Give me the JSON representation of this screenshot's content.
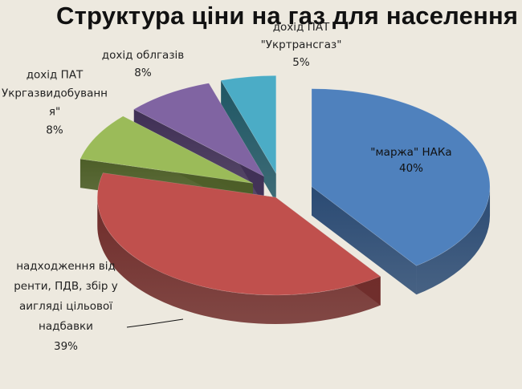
{
  "chart_data": {
    "type": "pie",
    "title": "Структура ціни на газ для населення",
    "slices": [
      {
        "label_lines": [
          "\"маржа\" НАКа"
        ],
        "value": 40,
        "value_text": "40%",
        "color": "#4f81bd",
        "dark": "#2a4a73"
      },
      {
        "label_lines": [
          "надходження від",
          "ренти, ПДВ, збір у",
          "аигляді цільової",
          "надбавки"
        ],
        "value": 39,
        "value_text": "39%",
        "color": "#c0504d",
        "dark": "#6e2b29"
      },
      {
        "label_lines": [
          "дохід ПАТ",
          "Укргазвидобуванн",
          "я\""
        ],
        "value": 8,
        "value_text": "8%",
        "color": "#9bbb59",
        "dark": "#4d5e28"
      },
      {
        "label_lines": [
          "дохід облгазів"
        ],
        "value": 8,
        "value_text": "8%",
        "color": "#8064a2",
        "dark": "#3f2f55"
      },
      {
        "label_lines": [
          "дохід ПАТ",
          "\"Укртрансгаз\""
        ],
        "value": 5,
        "value_text": "5%",
        "color": "#4bacc6",
        "dark": "#1f5664"
      }
    ],
    "exploded": true,
    "style": "3d",
    "legend": "none"
  }
}
